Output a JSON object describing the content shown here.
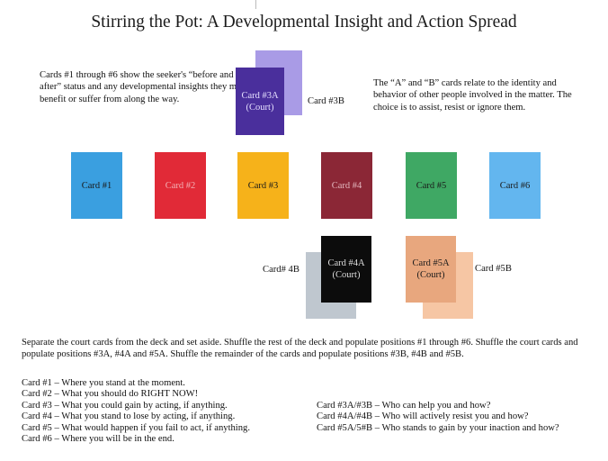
{
  "title": "Stirring the Pot: A Developmental Insight and Action Spread",
  "notes": {
    "left": "Cards #1 through #6 show the seeker's “before and after” status and any developmental insights they may benefit or suffer from along the way.",
    "right": "The “A” and “B” cards relate to the identity and behavior of other people involved in the matter. The choice is to assist, resist or ignore them."
  },
  "top_pair": {
    "a_label": "Card #3A\n(Court)",
    "b_label": "Card #3B",
    "a_color": "#4a2f9c",
    "b_color": "#a99be6"
  },
  "row_cards": [
    {
      "label": "Card #1",
      "color": "#3a9fe0",
      "text_color": "#1a1a1a"
    },
    {
      "label": "Card #2",
      "color": "#e12a37",
      "text_color": "#f3b0b5"
    },
    {
      "label": "Card #3",
      "color": "#f6b21a",
      "text_color": "#1a1a1a"
    },
    {
      "label": "Card #4",
      "color": "#8b2736",
      "text_color": "#e2b6bd"
    },
    {
      "label": "Card #5",
      "color": "#3fa864",
      "text_color": "#1a1a1a"
    },
    {
      "label": "Card #6",
      "color": "#63b6ef",
      "text_color": "#1a1a1a"
    }
  ],
  "bottom_pairs": [
    {
      "a_label": "Card #4A\n(Court)",
      "b_label": "Card# 4B",
      "a_color": "#0c0c0c",
      "b_color": "#bfc7cf",
      "a_text_color": "#dedede"
    },
    {
      "a_label": "Card #5A\n(Court)",
      "b_label": "Card #5B",
      "a_color": "#e8a77e",
      "b_color": "#f6c6a4",
      "a_text_color": "#1a1a1a"
    }
  ],
  "instructions": "Separate the court cards from the deck and set aside. Shuffle the rest of the deck and populate positions #1 through #6. Shuffle the court cards and populate positions #3A, #4A and #5A. Shuffle the remainder of the cards and populate positions #3B, #4B and #5B.",
  "legend_left": [
    "Card #1 – Where you stand at the moment.",
    "Card #2 – What you should do RIGHT NOW!",
    "Card #3 – What you could gain by acting, if anything.",
    "Card #4 – What you stand to lose by acting, if anything.",
    "Card #5 – What would happen if you fail to act, if anything.",
    "Card #6 – Where you will be in the end."
  ],
  "legend_right": [
    "Card #3A/#3B – Who can help you and how?",
    "Card #4A/#4B – Who will actively resist you and how?",
    "Card #5A/5#B – Who stands to gain by your inaction and how?"
  ]
}
